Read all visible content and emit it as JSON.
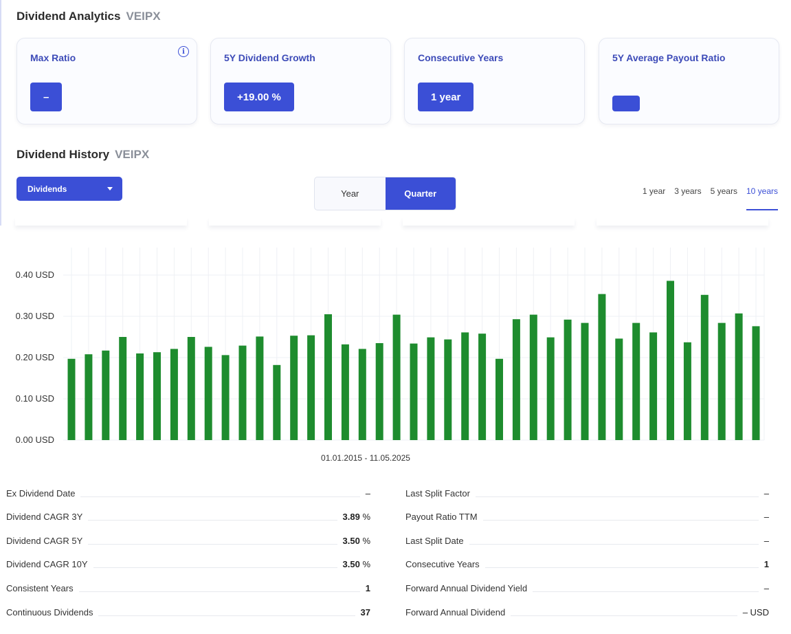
{
  "analytics": {
    "title": "Dividend Analytics",
    "ticker": "VEIPX",
    "cards": [
      {
        "title": "Max Ratio",
        "value": "–",
        "has_info": true
      },
      {
        "title": "5Y Dividend Growth",
        "value": "+19.00 %"
      },
      {
        "title": "Consecutive Years",
        "value": "1 year"
      },
      {
        "title": "5Y Average Payout Ratio",
        "value": ""
      }
    ]
  },
  "history": {
    "title": "Dividend History",
    "ticker": "VEIPX",
    "dropdown_label": "Dividends",
    "period_toggle": [
      "Year",
      "Quarter"
    ],
    "period_active": "Quarter",
    "ranges": [
      "1 year",
      "3 years",
      "5 years",
      "10 years"
    ],
    "range_active": "10 years"
  },
  "chart_data": {
    "type": "bar",
    "title": "",
    "xlabel": "01.01.2015 - 11.05.2025",
    "ylabel": "",
    "ylim": [
      0,
      0.46
    ],
    "y_ticks": [
      "0.00 USD",
      "0.10 USD",
      "0.20 USD",
      "0.30 USD",
      "0.40 USD"
    ],
    "y_tick_values": [
      0,
      0.1,
      0.2,
      0.3,
      0.4
    ],
    "grid": true,
    "bar_color": "#1e8c2e",
    "values": [
      0.197,
      0.208,
      0.217,
      0.25,
      0.21,
      0.213,
      0.221,
      0.25,
      0.226,
      0.206,
      0.229,
      0.251,
      0.182,
      0.253,
      0.254,
      0.305,
      0.232,
      0.221,
      0.235,
      0.304,
      0.234,
      0.249,
      0.244,
      0.261,
      0.258,
      0.197,
      0.293,
      0.304,
      0.249,
      0.292,
      0.284,
      0.354,
      0.246,
      0.284,
      0.261,
      0.386,
      0.237,
      0.352,
      0.284,
      0.307,
      0.276
    ]
  },
  "stats": {
    "left": [
      {
        "label": "Ex Dividend Date",
        "value": "–",
        "muted": true
      },
      {
        "label": "Dividend CAGR 3Y",
        "value": "3.89",
        "unit": "%"
      },
      {
        "label": "Dividend CAGR 5Y",
        "value": "3.50",
        "unit": "%"
      },
      {
        "label": "Dividend CAGR 10Y",
        "value": "3.50",
        "unit": "%"
      },
      {
        "label": "Consistent Years",
        "value": "1"
      },
      {
        "label": "Continuous Dividends",
        "value": "37"
      }
    ],
    "right": [
      {
        "label": "Last Split Factor",
        "value": "–",
        "muted": true
      },
      {
        "label": "Payout Ratio TTM",
        "value": "–",
        "muted": true
      },
      {
        "label": "Last Split Date",
        "value": "–",
        "muted": true
      },
      {
        "label": "Consecutive Years",
        "value": "1"
      },
      {
        "label": "Forward Annual Dividend Yield",
        "value": "–",
        "muted": true
      },
      {
        "label": "Forward Annual Dividend",
        "value": "– USD",
        "muted": true
      }
    ]
  }
}
